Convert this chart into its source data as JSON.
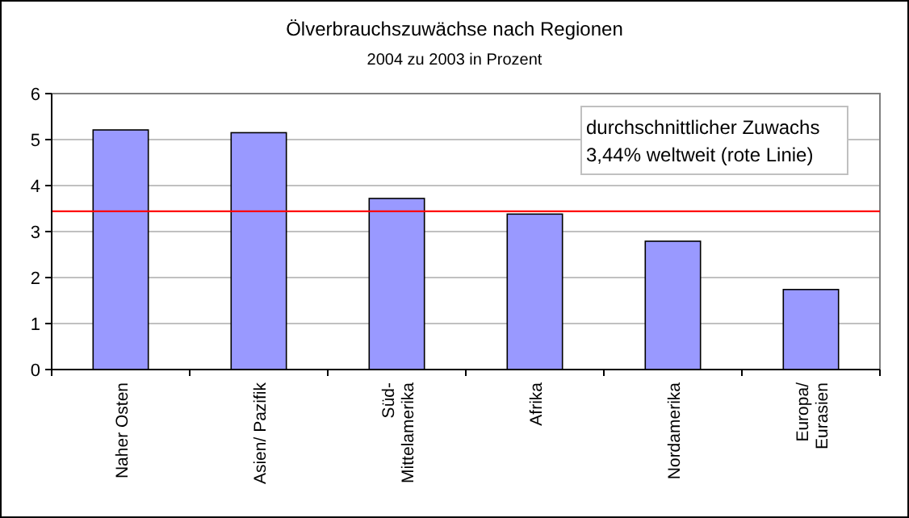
{
  "chart_data": {
    "type": "bar",
    "title": "Ölverbrauchszuwächse nach Regionen",
    "subtitle": "2004 zu 2003 in Prozent",
    "categories": [
      "Naher Osten",
      "Asien/ Pazifik",
      "Süd-\nMittelamerika",
      "Afrika",
      "Nordamerika",
      "Europa/\nEurasien"
    ],
    "values": [
      5.21,
      5.15,
      3.72,
      3.38,
      2.79,
      1.74
    ],
    "color": "#9999ff",
    "ylim": [
      0,
      6
    ],
    "yticks": [
      0,
      1,
      2,
      3,
      4,
      5,
      6
    ],
    "grid": "y",
    "ref_lines": [
      {
        "axis": "y",
        "value": 3.44,
        "color": "#ff0000"
      }
    ],
    "annotations": [
      "durchschnittlicher Zuwachs\n3,44% weltweit (rote Linie)"
    ]
  }
}
